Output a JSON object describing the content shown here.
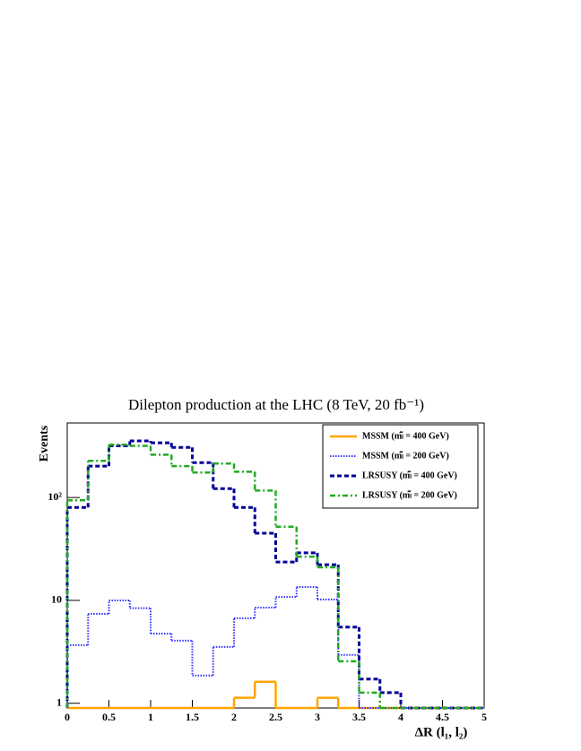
{
  "chart_data": {
    "type": "histogram",
    "title": "Dilepton production at the LHC (8 TeV, 20 fb⁻¹)",
    "x_label": "ΔR (l₁, l₂)",
    "y_label": "Events",
    "log_y": true,
    "bins": [
      0,
      0.25,
      0.5,
      0.75,
      1,
      1.25,
      1.5,
      1.75,
      2,
      2.25,
      2.5,
      2.75,
      3,
      3.25,
      3.5,
      3.75,
      4,
      4.25,
      4.5,
      4.75,
      5
    ],
    "series": [
      {
        "name": "MSSM (mₗ̃ = 400 GeV)",
        "color": "#ffa500",
        "style": "solid",
        "values": [
          0,
          0,
          0,
          0,
          0,
          0,
          0,
          0,
          1.13,
          1.62,
          0,
          0,
          1.13,
          0,
          0,
          0,
          0,
          0,
          0,
          0
        ]
      },
      {
        "name": "MSSM (mₗ̃ = 200 GeV)",
        "color": "#3333ff",
        "style": "dotted",
        "values": [
          3.67,
          7.4,
          10,
          8.4,
          4.76,
          4.06,
          1.86,
          3.53,
          6.7,
          8.5,
          10.8,
          13.5,
          10.2,
          2.95,
          0,
          0,
          0,
          0,
          0,
          0
        ]
      },
      {
        "name": "LRSUSY (mₗ̃ = 400 GeV)",
        "color": "#000099",
        "style": "dashed",
        "values": [
          80,
          202,
          318,
          355,
          340,
          307,
          218,
          122,
          80,
          45,
          23.6,
          29,
          22.2,
          5.5,
          1.72,
          1.27,
          0,
          0,
          0,
          0
        ]
      },
      {
        "name": "LRSUSY (mₗ̃ = 200 GeV)",
        "color": "#22aa22",
        "style": "dashdot",
        "values": [
          94,
          227,
          326,
          318,
          261,
          202,
          175,
          214,
          178,
          117,
          52,
          26.6,
          21,
          2.56,
          1.27,
          0,
          0,
          0,
          0,
          0
        ]
      }
    ],
    "xlim": [
      0,
      5
    ],
    "xticks": [
      0,
      0.5,
      1,
      1.5,
      2,
      2.5,
      3,
      3.5,
      4,
      4.5,
      5
    ],
    "ylim": [
      0.9,
      530
    ],
    "yticks": [
      1,
      10,
      {
        "value": 100,
        "label": "10²"
      }
    ],
    "legend": "top-right"
  }
}
